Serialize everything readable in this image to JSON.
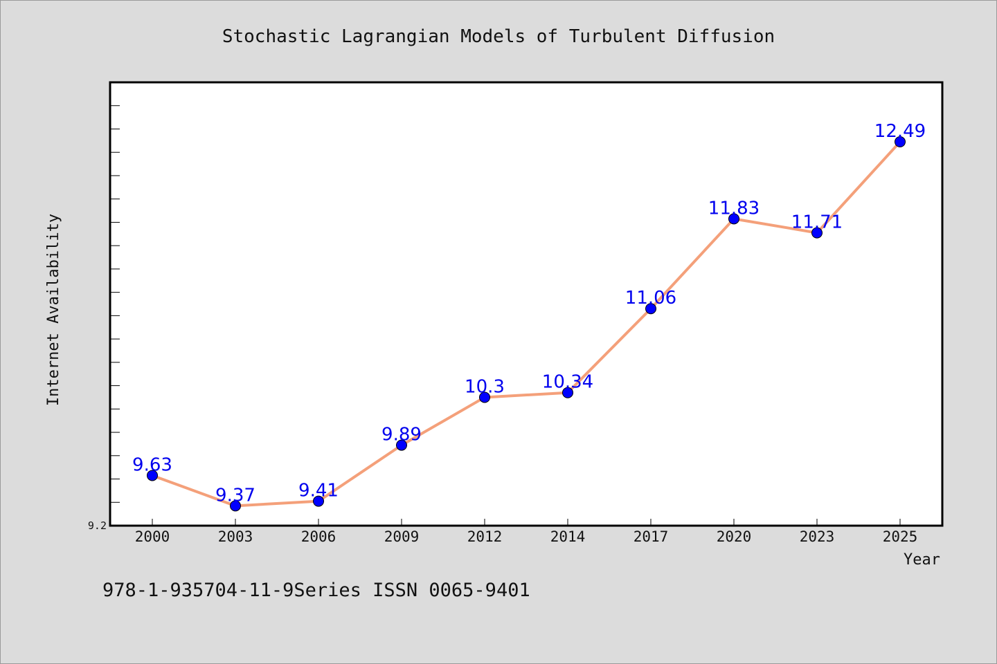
{
  "chart_data": {
    "type": "line",
    "title": "Stochastic Lagrangian Models of Turbulent Diffusion",
    "xlabel": "Year",
    "ylabel": "Internet Availability",
    "categories": [
      "2000",
      "2003",
      "2006",
      "2009",
      "2012",
      "2014",
      "2017",
      "2020",
      "2023",
      "2025"
    ],
    "values": [
      9.63,
      9.37,
      9.41,
      9.89,
      10.3,
      10.34,
      11.06,
      11.83,
      11.71,
      12.49
    ],
    "data_labels": [
      "9.63",
      "9.37",
      "9.41",
      "9.89",
      "10.3",
      "10.34",
      "11.06",
      "11.83",
      "11.71",
      "12.49"
    ],
    "ylim": [
      9.2,
      13.0
    ],
    "y_tick_labels": [
      "9.2"
    ],
    "y_minor_step": 0.2,
    "line_color": "#f4a07a",
    "marker_color": "#0000ff",
    "label_color": "#0000ee",
    "grid": false,
    "legend": "none"
  },
  "footer_text": "978-1-935704-11-9Series ISSN 0065-9401"
}
